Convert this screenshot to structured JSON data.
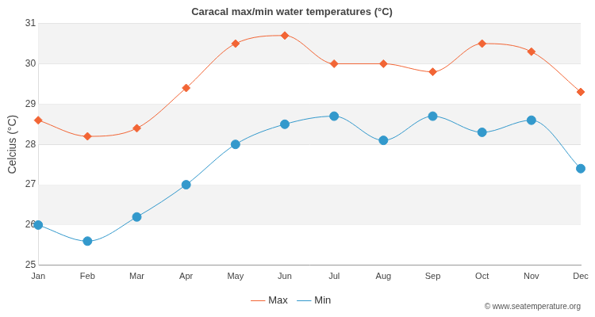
{
  "chart_data": {
    "type": "line",
    "title": "Caracal max/min water temperatures (°C)",
    "y_label": "Celcius (°C)",
    "source": "© www.seatemperature.org",
    "categories": [
      "Jan",
      "Feb",
      "Mar",
      "Apr",
      "May",
      "Jun",
      "Jul",
      "Aug",
      "Sep",
      "Oct",
      "Nov",
      "Dec"
    ],
    "series": [
      {
        "name": "Max",
        "color": "#f26535",
        "marker": "diamond",
        "values": [
          28.6,
          28.2,
          28.4,
          29.4,
          30.5,
          30.7,
          30.0,
          30.0,
          29.8,
          30.5,
          30.3,
          29.3
        ]
      },
      {
        "name": "Min",
        "color": "#3399cc",
        "marker": "circle",
        "values": [
          26.0,
          25.6,
          26.2,
          27.0,
          28.0,
          28.5,
          28.7,
          28.1,
          28.7,
          28.3,
          28.6,
          27.4
        ]
      }
    ],
    "ylim": [
      25,
      31
    ],
    "yticks": [
      25,
      26,
      27,
      28,
      29,
      30,
      31
    ],
    "grid": true,
    "legend": "bottom"
  }
}
